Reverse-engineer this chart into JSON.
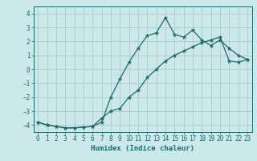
{
  "title": "",
  "xlabel": "Humidex (Indice chaleur)",
  "bg_color": "#cce8e8",
  "grid_color": "#aacccc",
  "line_color": "#1a6b6b",
  "spine_color": "#1a6b6b",
  "xlim": [
    -0.5,
    23.5
  ],
  "ylim": [
    -4.5,
    4.5
  ],
  "xticks": [
    0,
    1,
    2,
    3,
    4,
    5,
    6,
    7,
    8,
    9,
    10,
    11,
    12,
    13,
    14,
    15,
    16,
    17,
    18,
    19,
    20,
    21,
    22,
    23
  ],
  "yticks": [
    -4,
    -3,
    -2,
    -1,
    0,
    1,
    2,
    3,
    4
  ],
  "line1_x": [
    0,
    1,
    2,
    3,
    4,
    5,
    6,
    7,
    8,
    9,
    10,
    11,
    12,
    13,
    14,
    15,
    16,
    17,
    18,
    19,
    20,
    21,
    22,
    23
  ],
  "line1_y": [
    -3.8,
    -4.0,
    -4.1,
    -4.2,
    -4.2,
    -4.15,
    -4.1,
    -3.8,
    -2.0,
    -0.7,
    0.5,
    1.5,
    2.4,
    2.6,
    3.7,
    2.5,
    2.3,
    2.8,
    2.1,
    1.7,
    2.1,
    1.5,
    1.0,
    0.7
  ],
  "line2_x": [
    0,
    1,
    2,
    3,
    4,
    5,
    6,
    7,
    8,
    9,
    10,
    11,
    12,
    13,
    14,
    15,
    16,
    17,
    18,
    19,
    20,
    21,
    22,
    23
  ],
  "line2_y": [
    -3.8,
    -4.0,
    -4.1,
    -4.2,
    -4.2,
    -4.15,
    -4.1,
    -3.5,
    -3.0,
    -2.8,
    -2.0,
    -1.5,
    -0.6,
    0.0,
    0.6,
    1.0,
    1.3,
    1.6,
    1.9,
    2.1,
    2.3,
    0.6,
    0.5,
    0.7
  ],
  "tick_fontsize": 5.5,
  "xlabel_fontsize": 6.5,
  "tick_label_color": "#1a6b6b"
}
